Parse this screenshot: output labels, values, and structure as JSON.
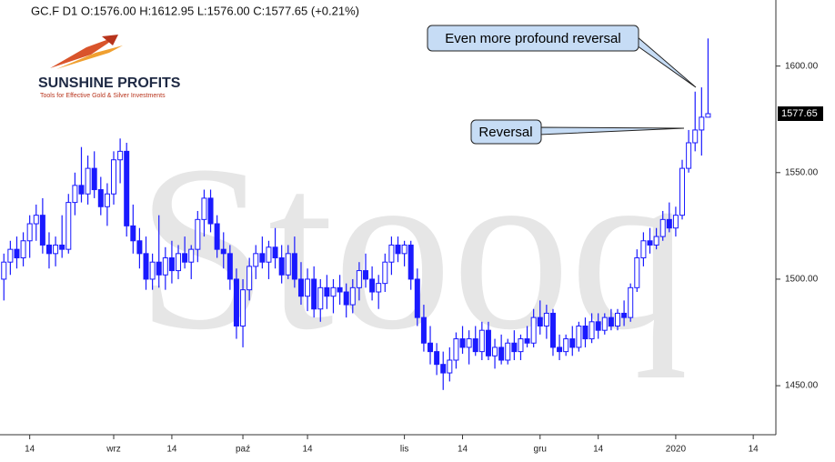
{
  "header": "GC.F  D1  O:1576.00  H:1612.95  L:1576.00  C:1577.65  (+0.21%)",
  "logo": {
    "name": "SUNSHINE PROFITS",
    "tagline": "Tools for Effective Gold & Silver Investments"
  },
  "chart_data": {
    "type": "candlestick",
    "watermark": "Stooq",
    "up_color": "#ffffff",
    "down_color": "#1a1aff",
    "line_color": "#1a1aff",
    "open": [
      1500,
      1508,
      1514,
      1510,
      1518,
      1526,
      1530,
      1516,
      1512,
      1516,
      1514,
      1536,
      1544,
      1540,
      1552,
      1542,
      1534,
      1540,
      1556,
      1560,
      1525,
      1518,
      1512,
      1500,
      1508,
      1502,
      1510,
      1504,
      1512,
      1508,
      1514,
      1528,
      1538,
      1526,
      1514,
      1512,
      1500,
      1478,
      1495,
      1506,
      1512,
      1508,
      1515,
      1510,
      1502,
      1512,
      1500,
      1492,
      1500,
      1486,
      1496,
      1492,
      1496,
      1494,
      1488,
      1496,
      1504,
      1500,
      1494,
      1498,
      1508,
      1516,
      1512,
      1516,
      1500,
      1482,
      1470,
      1466,
      1460,
      1456,
      1462,
      1472,
      1468,
      1472,
      1466,
      1476,
      1464,
      1468,
      1462,
      1470,
      1466,
      1472,
      1470,
      1482,
      1478,
      1484,
      1468,
      1466,
      1472,
      1468,
      1478,
      1472,
      1480,
      1476,
      1482,
      1478,
      1484,
      1482,
      1496,
      1510,
      1518,
      1516,
      1520,
      1528,
      1524,
      1530,
      1552,
      1564,
      1570,
      1576
    ],
    "high": [
      1512,
      1518,
      1520,
      1522,
      1530,
      1535,
      1538,
      1522,
      1520,
      1530,
      1540,
      1550,
      1562,
      1558,
      1560,
      1548,
      1545,
      1560,
      1566,
      1564,
      1535,
      1524,
      1520,
      1512,
      1530,
      1515,
      1518,
      1516,
      1520,
      1516,
      1532,
      1542,
      1542,
      1530,
      1522,
      1516,
      1505,
      1500,
      1510,
      1516,
      1520,
      1518,
      1524,
      1516,
      1516,
      1520,
      1508,
      1505,
      1506,
      1500,
      1502,
      1500,
      1502,
      1498,
      1500,
      1508,
      1512,
      1506,
      1502,
      1512,
      1520,
      1520,
      1518,
      1518,
      1505,
      1488,
      1478,
      1470,
      1466,
      1468,
      1475,
      1478,
      1476,
      1478,
      1480,
      1480,
      1472,
      1474,
      1472,
      1476,
      1474,
      1478,
      1486,
      1490,
      1488,
      1486,
      1474,
      1474,
      1478,
      1480,
      1482,
      1484,
      1484,
      1484,
      1486,
      1486,
      1490,
      1498,
      1514,
      1522,
      1524,
      1524,
      1532,
      1536,
      1534,
      1556,
      1570,
      1588,
      1590,
      1612.95
    ],
    "low": [
      1490,
      1502,
      1505,
      1506,
      1510,
      1518,
      1512,
      1505,
      1506,
      1510,
      1512,
      1530,
      1536,
      1535,
      1538,
      1530,
      1525,
      1535,
      1545,
      1520,
      1512,
      1505,
      1495,
      1495,
      1496,
      1495,
      1498,
      1500,
      1505,
      1500,
      1508,
      1520,
      1522,
      1510,
      1505,
      1495,
      1472,
      1468,
      1490,
      1500,
      1505,
      1500,
      1505,
      1498,
      1500,
      1496,
      1488,
      1485,
      1482,
      1480,
      1486,
      1484,
      1488,
      1482,
      1484,
      1490,
      1496,
      1490,
      1486,
      1494,
      1502,
      1508,
      1506,
      1495,
      1478,
      1466,
      1460,
      1455,
      1448,
      1452,
      1458,
      1465,
      1460,
      1464,
      1462,
      1462,
      1458,
      1460,
      1460,
      1462,
      1462,
      1468,
      1468,
      1474,
      1472,
      1464,
      1462,
      1464,
      1464,
      1466,
      1468,
      1470,
      1472,
      1474,
      1476,
      1476,
      1478,
      1480,
      1494,
      1506,
      1512,
      1514,
      1518,
      1522,
      1520,
      1528,
      1550,
      1560,
      1558,
      1576
    ],
    "close": [
      1508,
      1514,
      1510,
      1518,
      1526,
      1530,
      1516,
      1512,
      1516,
      1514,
      1536,
      1544,
      1540,
      1552,
      1542,
      1534,
      1540,
      1556,
      1560,
      1525,
      1518,
      1512,
      1500,
      1508,
      1502,
      1510,
      1504,
      1512,
      1508,
      1514,
      1528,
      1538,
      1526,
      1514,
      1512,
      1500,
      1478,
      1495,
      1506,
      1512,
      1508,
      1515,
      1510,
      1502,
      1512,
      1500,
      1492,
      1500,
      1486,
      1496,
      1492,
      1496,
      1494,
      1488,
      1496,
      1504,
      1500,
      1494,
      1498,
      1508,
      1516,
      1512,
      1516,
      1500,
      1482,
      1470,
      1466,
      1460,
      1456,
      1462,
      1472,
      1468,
      1472,
      1466,
      1476,
      1464,
      1468,
      1462,
      1470,
      1466,
      1472,
      1470,
      1482,
      1478,
      1484,
      1468,
      1466,
      1472,
      1468,
      1478,
      1472,
      1480,
      1476,
      1482,
      1478,
      1484,
      1482,
      1496,
      1510,
      1518,
      1516,
      1520,
      1528,
      1524,
      1530,
      1552,
      1564,
      1570,
      1576,
      1577.65
    ],
    "xlim": [
      -0.6,
      119.5
    ],
    "xticks": [
      {
        "value": 4,
        "label": "14"
      },
      {
        "value": 17,
        "label": "wrz"
      },
      {
        "value": 26,
        "label": "14"
      },
      {
        "value": 37,
        "label": "paź"
      },
      {
        "value": 47,
        "label": "14"
      },
      {
        "value": 62,
        "label": "lis"
      },
      {
        "value": 71,
        "label": "14"
      },
      {
        "value": 83,
        "label": "gru"
      },
      {
        "value": 92,
        "label": "14"
      },
      {
        "value": 104,
        "label": "2020"
      },
      {
        "value": 116,
        "label": "14"
      }
    ],
    "ylim": [
      1427,
      1631
    ],
    "yticks": [
      {
        "value": 1450,
        "label": "1450.00"
      },
      {
        "value": 1500,
        "label": "1500.00"
      },
      {
        "value": 1550,
        "label": "1550.00"
      },
      {
        "value": 1600,
        "label": "1600.00"
      }
    ],
    "last_value_label": "1577.65",
    "annotations": [
      "Even more profound reversal",
      "Reversal"
    ]
  }
}
